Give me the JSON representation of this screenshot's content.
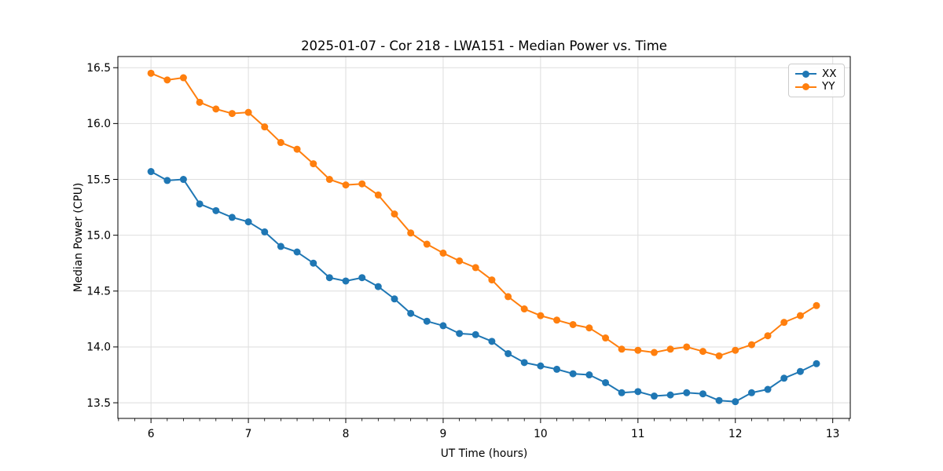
{
  "chart_data": {
    "type": "line",
    "title": "2025-01-07 - Cor 218 - LWA151 - Median Power vs. Time",
    "xlabel": "UT Time (hours)",
    "ylabel": "Median Power (CPU)",
    "xlim": [
      5.66,
      13.18
    ],
    "ylim": [
      13.36,
      16.6
    ],
    "x_ticks": [
      6,
      7,
      8,
      9,
      10,
      11,
      12,
      13
    ],
    "y_ticks": [
      13.5,
      14.0,
      14.5,
      15.0,
      15.5,
      16.0,
      16.5
    ],
    "x_minor_ticks_per_hour": 6,
    "grid": true,
    "legend_position": "upper right",
    "x": [
      6.0,
      6.167,
      6.333,
      6.5,
      6.667,
      6.833,
      7.0,
      7.167,
      7.333,
      7.5,
      7.667,
      7.833,
      8.0,
      8.167,
      8.333,
      8.5,
      8.667,
      8.833,
      9.0,
      9.167,
      9.333,
      9.5,
      9.667,
      9.833,
      10.0,
      10.167,
      10.333,
      10.5,
      10.667,
      10.833,
      11.0,
      11.167,
      11.333,
      11.5,
      11.667,
      11.833,
      12.0,
      12.167,
      12.333,
      12.5,
      12.667,
      12.833
    ],
    "series": [
      {
        "name": "XX",
        "color": "#1f77b4",
        "values": [
          15.57,
          15.49,
          15.5,
          15.28,
          15.22,
          15.16,
          15.12,
          15.03,
          14.9,
          14.85,
          14.75,
          14.62,
          14.59,
          14.62,
          14.54,
          14.43,
          14.3,
          14.23,
          14.19,
          14.12,
          14.11,
          14.05,
          13.94,
          13.86,
          13.83,
          13.8,
          13.76,
          13.75,
          13.68,
          13.59,
          13.6,
          13.56,
          13.57,
          13.59,
          13.58,
          13.52,
          13.51,
          13.59,
          13.62,
          13.72,
          13.78,
          13.85
        ]
      },
      {
        "name": "YY",
        "color": "#ff7f0e",
        "values": [
          16.45,
          16.39,
          16.41,
          16.19,
          16.13,
          16.09,
          16.1,
          15.97,
          15.83,
          15.77,
          15.64,
          15.5,
          15.45,
          15.46,
          15.36,
          15.19,
          15.02,
          14.92,
          14.84,
          14.77,
          14.71,
          14.6,
          14.45,
          14.34,
          14.28,
          14.24,
          14.2,
          14.17,
          14.08,
          13.98,
          13.97,
          13.95,
          13.98,
          14.0,
          13.96,
          13.92,
          13.97,
          14.02,
          14.1,
          14.22,
          14.28,
          14.37
        ]
      }
    ]
  }
}
